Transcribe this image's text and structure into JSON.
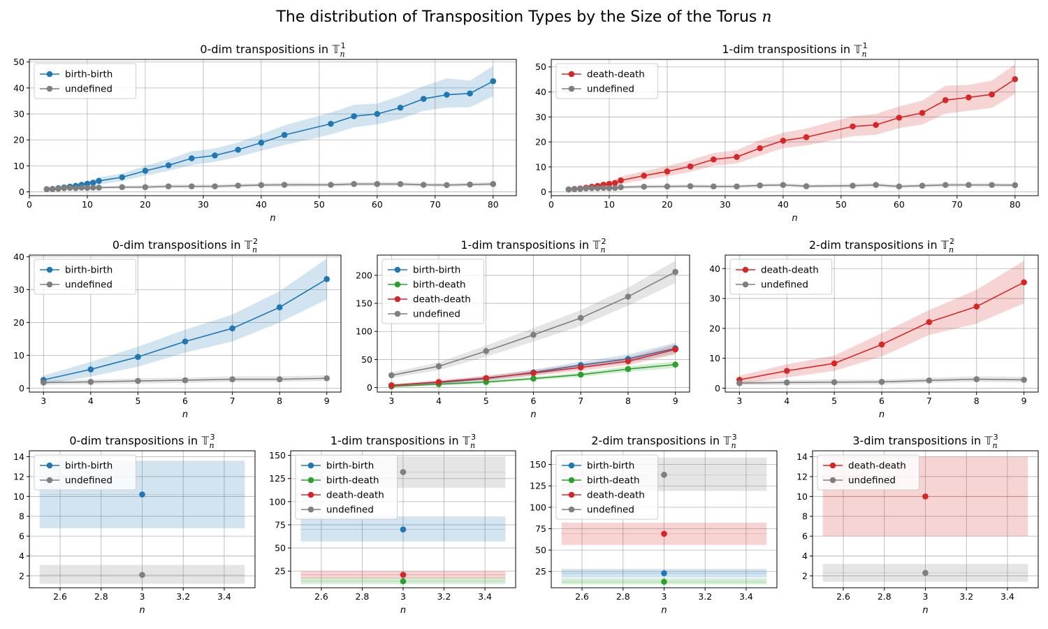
{
  "figure": {
    "title_prefix": "The distribution of Transposition Types by the Size of the Torus ",
    "title_var": "n"
  },
  "colors": {
    "birth-birth": "#1f77b4",
    "birth-death": "#2ca02c",
    "death-death": "#d62728",
    "undefined": "#7f7f7f"
  },
  "chart_data": [
    {
      "id": "t1-dim0",
      "type": "line",
      "title_prefix": "0-dim transpositions in ",
      "torus_dim": "1",
      "xlabel": "n",
      "xlim": [
        0,
        84
      ],
      "ylim": [
        -1.5,
        51
      ],
      "xticks": [
        0,
        10,
        20,
        30,
        40,
        50,
        60,
        70,
        80
      ],
      "yticks": [
        0,
        10,
        20,
        30,
        40,
        50
      ],
      "grid": true,
      "legend": "upper left",
      "x": [
        3,
        4,
        5,
        6,
        7,
        8,
        9,
        10,
        11,
        12,
        16,
        20,
        24,
        28,
        32,
        36,
        40,
        44,
        52,
        56,
        60,
        64,
        68,
        72,
        76,
        80
      ],
      "series": [
        {
          "name": "birth-birth",
          "values": [
            1.0,
            1.1,
            1.4,
            1.7,
            2.0,
            2.3,
            2.7,
            3.1,
            3.5,
            4.2,
            5.6,
            8.1,
            10.2,
            12.9,
            14.0,
            16.2,
            18.9,
            21.9,
            26.2,
            29.1,
            30.0,
            32.4,
            35.8,
            37.4,
            37.9,
            42.6
          ],
          "low": [
            0.5,
            0.6,
            0.8,
            1.0,
            1.2,
            1.5,
            1.8,
            2.1,
            2.4,
            2.8,
            4.2,
            6.2,
            8.1,
            10.3,
            11.5,
            13.5,
            15.8,
            18.0,
            22.1,
            24.8,
            26.0,
            28.0,
            31.2,
            32.5,
            32.6,
            36.8
          ],
          "high": [
            1.5,
            1.7,
            2.0,
            2.4,
            2.8,
            3.1,
            3.6,
            4.1,
            4.6,
            5.6,
            7.0,
            10.0,
            12.5,
            15.6,
            16.7,
            19.0,
            22.2,
            25.6,
            30.5,
            33.5,
            34.0,
            37.0,
            40.7,
            43.7,
            42.8,
            48.5
          ]
        },
        {
          "name": "undefined",
          "values": [
            1.0,
            1.0,
            1.2,
            1.4,
            1.5,
            1.4,
            1.6,
            1.5,
            1.6,
            1.6,
            1.8,
            1.8,
            2.1,
            2.1,
            2.1,
            2.4,
            2.6,
            2.7,
            2.7,
            3.0,
            3.0,
            3.0,
            2.7,
            2.6,
            2.8,
            3.0
          ],
          "low": [
            0.6,
            0.6,
            0.7,
            0.9,
            1.0,
            0.9,
            1.0,
            1.0,
            1.0,
            1.1,
            1.2,
            1.2,
            1.4,
            1.4,
            1.4,
            1.7,
            1.9,
            1.9,
            2.0,
            2.2,
            2.2,
            2.2,
            2.0,
            1.9,
            2.1,
            2.2
          ],
          "high": [
            1.4,
            1.4,
            1.7,
            1.9,
            2.0,
            1.9,
            2.2,
            2.0,
            2.2,
            2.1,
            2.4,
            2.5,
            2.8,
            2.8,
            2.8,
            3.1,
            3.3,
            3.5,
            3.4,
            3.8,
            3.8,
            3.8,
            3.4,
            3.3,
            3.5,
            3.8
          ]
        }
      ]
    },
    {
      "id": "t1-dim1",
      "type": "line",
      "title_prefix": "1-dim transpositions in ",
      "torus_dim": "1",
      "xlabel": "n",
      "xlim": [
        0,
        84
      ],
      "ylim": [
        -1.5,
        53
      ],
      "xticks": [
        0,
        10,
        20,
        30,
        40,
        50,
        60,
        70,
        80
      ],
      "yticks": [
        0,
        10,
        20,
        30,
        40,
        50
      ],
      "grid": true,
      "legend": "upper left",
      "x": [
        3,
        4,
        5,
        6,
        7,
        8,
        9,
        10,
        11,
        12,
        16,
        20,
        24,
        28,
        32,
        36,
        40,
        44,
        52,
        56,
        60,
        64,
        68,
        72,
        76,
        80
      ],
      "series": [
        {
          "name": "death-death",
          "values": [
            1.0,
            1.2,
            1.4,
            1.7,
            2.1,
            2.4,
            2.9,
            3.2,
            3.6,
            4.6,
            6.5,
            8.2,
            10.2,
            13.0,
            14.0,
            17.5,
            20.5,
            21.9,
            26.2,
            26.8,
            29.7,
            31.6,
            36.7,
            37.8,
            39.0,
            45.1
          ],
          "low": [
            0.5,
            0.7,
            0.8,
            1.0,
            1.3,
            1.6,
            1.9,
            2.1,
            2.5,
            3.2,
            4.8,
            6.3,
            8.0,
            10.5,
            11.4,
            14.5,
            17.5,
            18.6,
            22.3,
            22.8,
            25.5,
            27.0,
            31.3,
            32.5,
            33.6,
            39.2
          ],
          "high": [
            1.5,
            1.8,
            2.1,
            2.5,
            2.9,
            3.3,
            3.9,
            4.4,
            4.9,
            6.2,
            8.3,
            10.3,
            12.7,
            15.6,
            16.7,
            20.7,
            23.7,
            25.4,
            30.3,
            31.2,
            34.2,
            36.5,
            42.5,
            42.8,
            44.5,
            51.0
          ]
        },
        {
          "name": "undefined",
          "values": [
            1.0,
            1.1,
            1.2,
            1.4,
            1.5,
            1.5,
            1.6,
            1.5,
            1.6,
            1.9,
            2.1,
            2.2,
            2.3,
            2.2,
            2.2,
            2.6,
            2.8,
            2.3,
            2.5,
            2.8,
            2.2,
            2.5,
            2.8,
            2.8,
            2.8,
            2.7
          ],
          "low": [
            0.6,
            0.6,
            0.7,
            0.9,
            1.0,
            1.0,
            1.0,
            1.0,
            1.0,
            1.3,
            1.4,
            1.5,
            1.6,
            1.5,
            1.5,
            1.9,
            2.1,
            1.6,
            1.8,
            2.0,
            1.5,
            1.8,
            2.0,
            2.1,
            2.0,
            2.0
          ],
          "high": [
            1.4,
            1.5,
            1.7,
            1.9,
            2.0,
            2.0,
            2.2,
            2.0,
            2.2,
            2.5,
            2.8,
            2.9,
            3.0,
            2.9,
            2.9,
            3.3,
            3.5,
            3.0,
            3.2,
            3.6,
            2.9,
            3.2,
            3.6,
            3.5,
            3.6,
            3.4
          ]
        }
      ]
    },
    {
      "id": "t2-dim0",
      "type": "line",
      "title_prefix": "0-dim transpositions in ",
      "torus_dim": "2",
      "xlabel": "n",
      "xlim": [
        2.7,
        9.3
      ],
      "ylim": [
        -1.2,
        40.5
      ],
      "xticks": [
        3,
        4,
        5,
        6,
        7,
        8,
        9
      ],
      "yticks": [
        0,
        10,
        20,
        30,
        40
      ],
      "grid": true,
      "legend": "upper left",
      "x": [
        3,
        4,
        5,
        6,
        7,
        8,
        9
      ],
      "series": [
        {
          "name": "birth-birth",
          "values": [
            2.5,
            5.7,
            9.5,
            14.2,
            18.2,
            24.6,
            33.2
          ],
          "low": [
            1.2,
            3.5,
            6.5,
            10.8,
            14.2,
            20.0,
            27.0
          ],
          "high": [
            3.8,
            8.0,
            12.6,
            17.8,
            22.4,
            29.5,
            39.5
          ]
        },
        {
          "name": "undefined",
          "values": [
            1.7,
            1.9,
            2.2,
            2.4,
            2.7,
            2.7,
            3.0
          ],
          "low": [
            1.0,
            1.2,
            1.4,
            1.6,
            1.9,
            1.9,
            2.2
          ],
          "high": [
            2.4,
            2.6,
            3.0,
            3.2,
            3.6,
            3.6,
            3.9
          ]
        }
      ]
    },
    {
      "id": "t2-dim1",
      "type": "line",
      "title_prefix": "1-dim transpositions in ",
      "torus_dim": "2",
      "xlabel": "n",
      "xlim": [
        2.7,
        9.3
      ],
      "ylim": [
        -8,
        236
      ],
      "xticks": [
        3,
        4,
        5,
        6,
        7,
        8,
        9
      ],
      "yticks": [
        0,
        50,
        100,
        150,
        200
      ],
      "grid": true,
      "legend": "upper left",
      "x": [
        3,
        4,
        5,
        6,
        7,
        8,
        9
      ],
      "series": [
        {
          "name": "birth-birth",
          "values": [
            4,
            9,
            16,
            27,
            40,
            51,
            70
          ],
          "low": [
            2,
            6,
            12,
            22,
            34,
            44,
            61
          ],
          "high": [
            6,
            12,
            20,
            32,
            46,
            59,
            80
          ]
        },
        {
          "name": "birth-death",
          "values": [
            2,
            6,
            10,
            16,
            23,
            33,
            41
          ],
          "low": [
            1,
            4,
            7,
            13,
            19,
            28,
            35
          ],
          "high": [
            3,
            8,
            13,
            19,
            27,
            38,
            47
          ]
        },
        {
          "name": "death-death",
          "values": [
            4,
            10,
            17,
            26,
            36,
            47,
            68
          ],
          "low": [
            2,
            7,
            13,
            21,
            30,
            40,
            59
          ],
          "high": [
            6,
            13,
            21,
            31,
            42,
            54,
            77
          ]
        },
        {
          "name": "undefined",
          "values": [
            22,
            38,
            65,
            94,
            124,
            162,
            206
          ],
          "low": [
            17,
            31,
            55,
            82,
            110,
            146,
            186
          ],
          "high": [
            27,
            45,
            75,
            106,
            138,
            178,
            226
          ]
        }
      ]
    },
    {
      "id": "t2-dim2",
      "type": "line",
      "title_prefix": "2-dim transpositions in ",
      "torus_dim": "2",
      "xlabel": "n",
      "xlim": [
        2.7,
        9.3
      ],
      "ylim": [
        -1.3,
        44.5
      ],
      "xticks": [
        3,
        4,
        5,
        6,
        7,
        8,
        9
      ],
      "yticks": [
        0,
        10,
        20,
        30,
        40
      ],
      "grid": true,
      "legend": "upper left",
      "x": [
        3,
        4,
        5,
        6,
        7,
        8,
        9
      ],
      "series": [
        {
          "name": "death-death",
          "values": [
            2.8,
            5.8,
            8.3,
            14.6,
            22.1,
            27.3,
            35.4
          ],
          "low": [
            1.4,
            3.6,
            5.8,
            10.6,
            17.8,
            21.6,
            28.4
          ],
          "high": [
            4.2,
            8.0,
            10.9,
            18.4,
            26.1,
            32.9,
            42.6
          ]
        },
        {
          "name": "undefined",
          "values": [
            1.7,
            1.9,
            2.0,
            2.1,
            2.6,
            3.0,
            2.8
          ],
          "low": [
            1.0,
            1.1,
            1.2,
            1.3,
            1.8,
            2.1,
            1.9
          ],
          "high": [
            2.4,
            2.7,
            2.9,
            2.9,
            3.5,
            4.0,
            3.8
          ]
        }
      ]
    },
    {
      "id": "t3-dim0",
      "type": "scatter",
      "title_prefix": "0-dim transpositions in ",
      "torus_dim": "3",
      "xlabel": "n",
      "xlim": [
        2.45,
        3.55
      ],
      "ylim": [
        0.8,
        14.6
      ],
      "xticks": [
        2.6,
        2.8,
        3.0,
        3.2,
        3.4
      ],
      "yticks": [
        2,
        4,
        6,
        8,
        10,
        12,
        14
      ],
      "grid": true,
      "legend": "upper left",
      "band_x": [
        2.5,
        3.5
      ],
      "x": [
        3.0
      ],
      "series": [
        {
          "name": "birth-birth",
          "values": [
            10.2
          ],
          "low": [
            6.8
          ],
          "high": [
            13.6
          ]
        },
        {
          "name": "undefined",
          "values": [
            2.1
          ],
          "low": [
            1.2
          ],
          "high": [
            3.1
          ]
        }
      ]
    },
    {
      "id": "t3-dim1",
      "type": "scatter",
      "title_prefix": "1-dim transpositions in ",
      "torus_dim": "3",
      "xlabel": "n",
      "xlim": [
        2.45,
        3.55
      ],
      "ylim": [
        7,
        155
      ],
      "xticks": [
        2.6,
        2.8,
        3.0,
        3.2,
        3.4
      ],
      "yticks": [
        25,
        50,
        75,
        100,
        125,
        150
      ],
      "grid": true,
      "legend": "upper left",
      "band_x": [
        2.5,
        3.5
      ],
      "x": [
        3.0
      ],
      "series": [
        {
          "name": "birth-birth",
          "values": [
            70
          ],
          "low": [
            57
          ],
          "high": [
            84
          ]
        },
        {
          "name": "birth-death",
          "values": [
            14
          ],
          "low": [
            11
          ],
          "high": [
            18
          ]
        },
        {
          "name": "death-death",
          "values": [
            21
          ],
          "low": [
            17
          ],
          "high": [
            25
          ]
        },
        {
          "name": "undefined",
          "values": [
            132
          ],
          "low": [
            115
          ],
          "high": [
            149
          ]
        }
      ]
    },
    {
      "id": "t3-dim2",
      "type": "scatter",
      "title_prefix": "2-dim transpositions in ",
      "torus_dim": "3",
      "xlabel": "n",
      "xlim": [
        2.45,
        3.55
      ],
      "ylim": [
        6,
        166
      ],
      "xticks": [
        2.6,
        2.8,
        3.0,
        3.2,
        3.4
      ],
      "yticks": [
        25,
        50,
        75,
        100,
        125,
        150
      ],
      "grid": true,
      "legend": "upper left",
      "band_x": [
        2.5,
        3.5
      ],
      "x": [
        3.0
      ],
      "series": [
        {
          "name": "birth-birth",
          "values": [
            23
          ],
          "low": [
            18
          ],
          "high": [
            28
          ]
        },
        {
          "name": "birth-death",
          "values": [
            13
          ],
          "low": [
            10
          ],
          "high": [
            17
          ]
        },
        {
          "name": "death-death",
          "values": [
            69
          ],
          "low": [
            56
          ],
          "high": [
            82
          ]
        },
        {
          "name": "undefined",
          "values": [
            138
          ],
          "low": [
            119
          ],
          "high": [
            158
          ]
        }
      ]
    },
    {
      "id": "t3-dim3",
      "type": "scatter",
      "title_prefix": "3-dim transpositions in ",
      "torus_dim": "3",
      "xlabel": "n",
      "xlim": [
        2.45,
        3.55
      ],
      "ylim": [
        0.8,
        14.6
      ],
      "xticks": [
        2.6,
        2.8,
        3.0,
        3.2,
        3.4
      ],
      "yticks": [
        2,
        4,
        6,
        8,
        10,
        12,
        14
      ],
      "grid": true,
      "legend": "upper left",
      "band_x": [
        2.5,
        3.5
      ],
      "x": [
        3.0
      ],
      "series": [
        {
          "name": "death-death",
          "values": [
            10.0
          ],
          "low": [
            6.0
          ],
          "high": [
            14.0
          ]
        },
        {
          "name": "undefined",
          "values": [
            2.3
          ],
          "low": [
            1.4
          ],
          "high": [
            3.2
          ]
        }
      ]
    }
  ]
}
